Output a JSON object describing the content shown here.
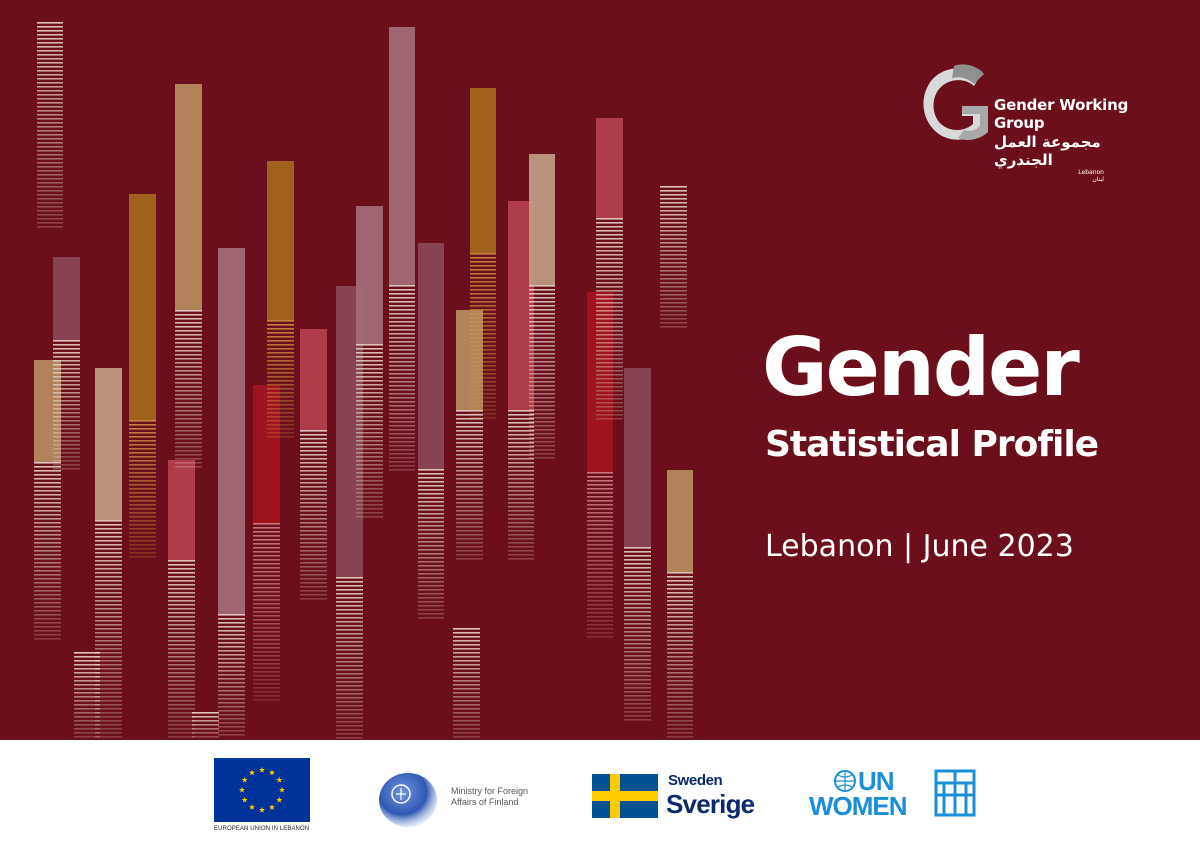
{
  "cover": {
    "background": "#6c0f1c",
    "title": "Gender",
    "subtitle": "Statistical Profile",
    "meta": "Lebanon | June 2023"
  },
  "logo": {
    "name_en": "Gender Working Group",
    "name_ar": "مجموعة العمل الجندري",
    "country_en": "Lebanon",
    "country_ar": "لبنان"
  },
  "partners": {
    "eu": {
      "caption": "EUROPEAN UNION IN LEBANON",
      "flag_color": "#003399",
      "star_color": "#ffcc00"
    },
    "finland": {
      "text": "Ministry for Foreign Affairs of Finland",
      "seal_color": "#2f58b3"
    },
    "sweden": {
      "line1": "Sweden",
      "line2": "Sverige",
      "blue": "#005293",
      "yellow": "#fecb00"
    },
    "unwomen": {
      "line1": "UN",
      "line2": "WOMEN",
      "color": "#1a8fd6"
    }
  },
  "palette": {
    "gold": "#a6681c",
    "tan": "#b98c61",
    "beige": "#c29b85",
    "rose": "#a66b78",
    "pink": "#b4404f",
    "red": "#a41420",
    "mauve": "#8c4756",
    "stripe": "#f2dfd8",
    "stripe_gold": "#d49a40",
    "stripe_pink": "#d88a96"
  }
}
